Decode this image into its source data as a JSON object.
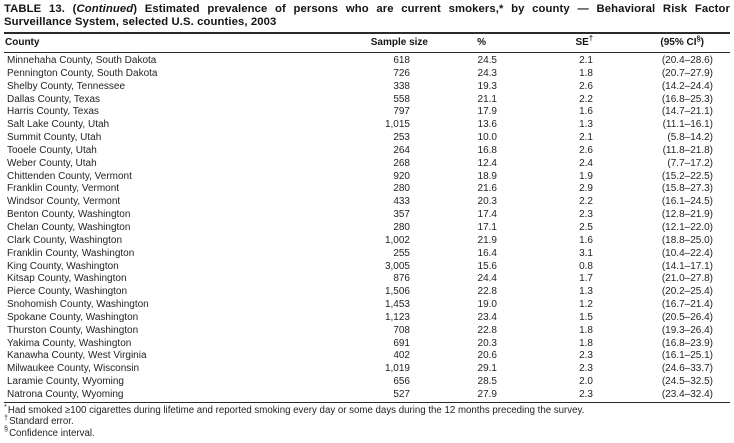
{
  "title": {
    "prefix": "TABLE 13. (",
    "continued": "Continued",
    "rest": ") Estimated prevalence of persons who are current smokers,* by county — Behavioral Risk Factor",
    "line2": "Surveillance System, selected U.S. counties, 2003"
  },
  "table": {
    "columns": [
      {
        "label": "County"
      },
      {
        "label": "Sample size"
      },
      {
        "label": "%"
      },
      {
        "label": "SE",
        "sup": "†"
      },
      {
        "label": "(95% CI",
        "sup": "§",
        "suffix": ")"
      }
    ],
    "column_keys": [
      "county",
      "sample-size",
      "percent",
      "se",
      "ci"
    ],
    "rows": [
      [
        "Minnehaha County, South Dakota",
        "618",
        "24.5",
        "2.1",
        "(20.4–28.6)"
      ],
      [
        "Pennington County, South Dakota",
        "726",
        "24.3",
        "1.8",
        "(20.7–27.9)"
      ],
      [
        "Shelby County, Tennessee",
        "338",
        "19.3",
        "2.6",
        "(14.2–24.4)"
      ],
      [
        "Dallas County, Texas",
        "558",
        "21.1",
        "2.2",
        "(16.8–25.3)"
      ],
      [
        "Harris County, Texas",
        "797",
        "17.9",
        "1.6",
        "(14.7–21.1)"
      ],
      [
        "Salt Lake County, Utah",
        "1,015",
        "13.6",
        "1.3",
        "(11.1–16.1)"
      ],
      [
        "Summit County, Utah",
        "253",
        "10.0",
        "2.1",
        "(5.8–14.2)"
      ],
      [
        "Tooele County, Utah",
        "264",
        "16.8",
        "2.6",
        "(11.8–21.8)"
      ],
      [
        "Weber County, Utah",
        "268",
        "12.4",
        "2.4",
        "(7.7–17.2)"
      ],
      [
        "Chittenden County, Vermont",
        "920",
        "18.9",
        "1.9",
        "(15.2–22.5)"
      ],
      [
        "Franklin County, Vermont",
        "280",
        "21.6",
        "2.9",
        "(15.8–27.3)"
      ],
      [
        "Windsor County, Vermont",
        "433",
        "20.3",
        "2.2",
        "(16.1–24.5)"
      ],
      [
        "Benton County, Washington",
        "357",
        "17.4",
        "2.3",
        "(12.8–21.9)"
      ],
      [
        "Chelan County, Washington",
        "280",
        "17.1",
        "2.5",
        "(12.1–22.0)"
      ],
      [
        "Clark County, Washington",
        "1,002",
        "21.9",
        "1.6",
        "(18.8–25.0)"
      ],
      [
        "Franklin County, Washington",
        "255",
        "16.4",
        "3.1",
        "(10.4–22.4)"
      ],
      [
        "King County, Washington",
        "3,005",
        "15.6",
        "0.8",
        "(14.1–17.1)"
      ],
      [
        "Kitsap County, Washington",
        "876",
        "24.4",
        "1.7",
        "(21.0–27.8)"
      ],
      [
        "Pierce County, Washington",
        "1,506",
        "22.8",
        "1.3",
        "(20.2–25.4)"
      ],
      [
        "Snohomish County, Washington",
        "1,453",
        "19.0",
        "1.2",
        "(16.7–21.4)"
      ],
      [
        "Spokane County, Washington",
        "1,123",
        "23.4",
        "1.5",
        "(20.5–26.4)"
      ],
      [
        "Thurston County, Washington",
        "708",
        "22.8",
        "1.8",
        "(19.3–26.4)"
      ],
      [
        "Yakima County, Washington",
        "691",
        "20.3",
        "1.8",
        "(16.8–23.9)"
      ],
      [
        "Kanawha County, West Virginia",
        "402",
        "20.6",
        "2.3",
        "(16.1–25.1)"
      ],
      [
        "Milwaukee County, Wisconsin",
        "1,019",
        "29.1",
        "2.3",
        "(24.6–33.7)"
      ],
      [
        "Laramie County, Wyoming",
        "656",
        "28.5",
        "2.0",
        "(24.5–32.5)"
      ],
      [
        "Natrona County, Wyoming",
        "527",
        "27.9",
        "2.3",
        "(23.4–32.4)"
      ]
    ]
  },
  "footnotes": [
    {
      "marker": "*",
      "text": "Had smoked ≥100 cigarettes during lifetime and reported smoking every day or some days during the 12 months preceding the survey."
    },
    {
      "marker": "†",
      "text": "Standard error."
    },
    {
      "marker": "§",
      "text": "Confidence interval."
    }
  ],
  "colors": {
    "text": "#1e1e1e",
    "rule": "#2a2a2a",
    "background": "#ffffff"
  }
}
